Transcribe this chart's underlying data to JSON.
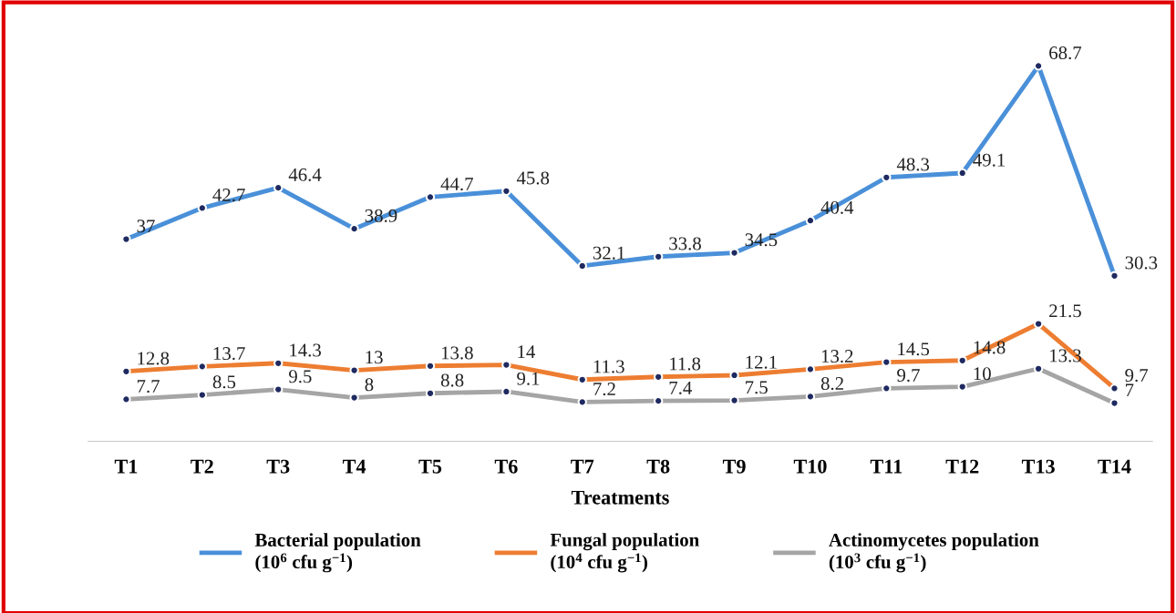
{
  "chart_data": {
    "type": "line",
    "xlabel": "Treatments",
    "categories": [
      "T1",
      "T2",
      "T3",
      "T4",
      "T5",
      "T6",
      "T7",
      "T8",
      "T9",
      "T10",
      "T11",
      "T12",
      "T13",
      "T14"
    ],
    "series": [
      {
        "name": "Bacterial population\n(10$^{6}$ cfu g$^{−1}$)",
        "color": "#4a90d9",
        "values": [
          37,
          42.7,
          46.4,
          38.9,
          44.7,
          45.8,
          32.1,
          33.8,
          34.5,
          40.4,
          48.3,
          49.1,
          68.7,
          30.3
        ]
      },
      {
        "name": "Fungal population\n(10$^{4}$ cfu g$^{−1}$)",
        "color": "#ed7d31",
        "values": [
          12.8,
          13.7,
          14.3,
          13,
          13.8,
          14,
          11.3,
          11.8,
          12.1,
          13.2,
          14.5,
          14.8,
          21.5,
          9.7
        ]
      },
      {
        "name": "Actinomycetes population\n(10$^{3}$ cfu g$^{−1}$)",
        "color": "#a5a5a5",
        "values": [
          7.7,
          8.5,
          9.5,
          8,
          8.8,
          9.1,
          7.2,
          7.4,
          7.5,
          8.2,
          9.7,
          10,
          13.3,
          7
        ]
      }
    ],
    "tick_labels": "x",
    "data_labels": true,
    "marker": "circle",
    "line_style": "solid",
    "legend": "bottom",
    "grid": false
  }
}
